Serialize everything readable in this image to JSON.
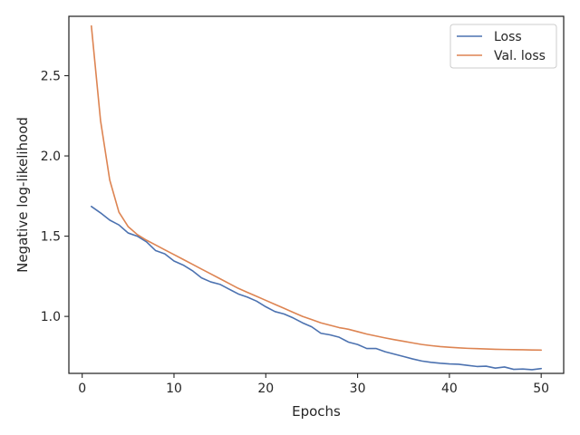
{
  "chart_data": {
    "type": "line",
    "title": "",
    "xlabel": "Epochs",
    "ylabel": "Negative log-likelihood",
    "xlim": [
      -1.45,
      52.45
    ],
    "ylim": [
      0.645,
      2.87
    ],
    "xticks": [
      0,
      10,
      20,
      30,
      40,
      50
    ],
    "yticks": [
      1.0,
      1.5,
      2.0,
      2.5
    ],
    "xtick_labels": [
      "0",
      "10",
      "20",
      "30",
      "40",
      "50"
    ],
    "ytick_labels": [
      "1.0",
      "1.5",
      "2.0",
      "2.5"
    ],
    "grid": false,
    "legend_position": "top-right",
    "x": [
      1,
      2,
      3,
      4,
      5,
      6,
      7,
      8,
      9,
      10,
      11,
      12,
      13,
      14,
      15,
      16,
      17,
      18,
      19,
      20,
      21,
      22,
      23,
      24,
      25,
      26,
      27,
      28,
      29,
      30,
      31,
      32,
      33,
      34,
      35,
      36,
      37,
      38,
      39,
      40,
      41,
      42,
      43,
      44,
      45,
      46,
      47,
      48,
      49,
      50
    ],
    "series": [
      {
        "name": "Loss",
        "color": "#4c72b0",
        "values": [
          1.685,
          1.645,
          1.6,
          1.57,
          1.52,
          1.5,
          1.465,
          1.41,
          1.39,
          1.345,
          1.32,
          1.285,
          1.24,
          1.215,
          1.2,
          1.17,
          1.14,
          1.12,
          1.095,
          1.06,
          1.03,
          1.015,
          0.99,
          0.96,
          0.935,
          0.895,
          0.885,
          0.87,
          0.84,
          0.825,
          0.8,
          0.8,
          0.78,
          0.765,
          0.75,
          0.735,
          0.722,
          0.714,
          0.708,
          0.704,
          0.702,
          0.695,
          0.688,
          0.69,
          0.678,
          0.685,
          0.67,
          0.672,
          0.668,
          0.675
        ]
      },
      {
        "name": "Val. loss",
        "color": "#dd8452",
        "values": [
          2.81,
          2.22,
          1.85,
          1.65,
          1.56,
          1.51,
          1.475,
          1.445,
          1.415,
          1.385,
          1.355,
          1.325,
          1.295,
          1.265,
          1.235,
          1.205,
          1.175,
          1.15,
          1.125,
          1.1,
          1.075,
          1.05,
          1.025,
          1.0,
          0.98,
          0.96,
          0.945,
          0.93,
          0.92,
          0.905,
          0.89,
          0.878,
          0.866,
          0.855,
          0.845,
          0.835,
          0.825,
          0.818,
          0.812,
          0.808,
          0.804,
          0.801,
          0.799,
          0.797,
          0.795,
          0.794,
          0.793,
          0.792,
          0.791,
          0.79
        ]
      }
    ]
  }
}
